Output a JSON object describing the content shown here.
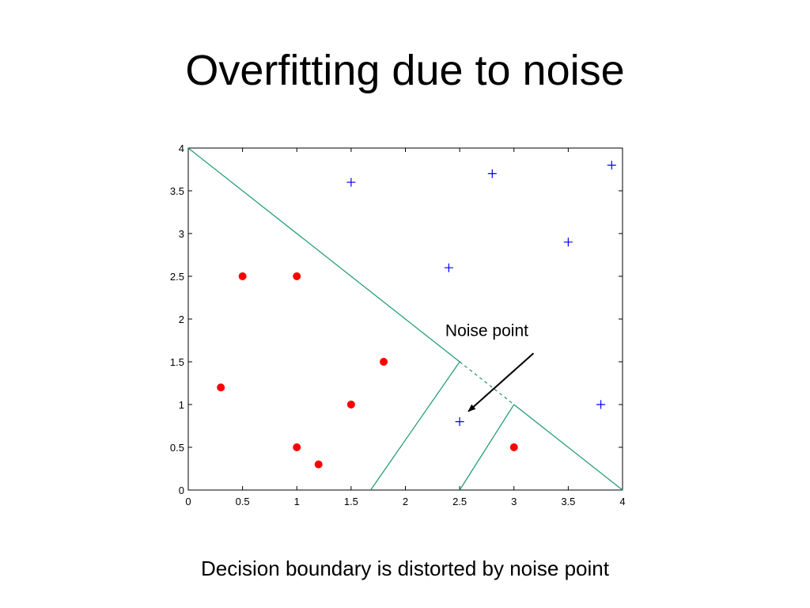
{
  "slide": {
    "title": "Overfitting due to noise",
    "caption": "Decision boundary is distorted by noise point"
  },
  "chart_data": {
    "type": "scatter",
    "xlim": [
      0,
      4
    ],
    "ylim": [
      0,
      4
    ],
    "x_ticks": [
      "0",
      "0.5",
      "1",
      "1.5",
      "2",
      "2.5",
      "3",
      "3.5",
      "4"
    ],
    "y_ticks": [
      "0",
      "0.5",
      "1",
      "1.5",
      "2",
      "2.5",
      "3",
      "3.5",
      "4"
    ],
    "grid": false,
    "series": [
      {
        "marker": "circle",
        "color": "#ff0000",
        "points": [
          [
            0.5,
            2.5
          ],
          [
            1,
            2.5
          ],
          [
            0.3,
            1.2
          ],
          [
            1.8,
            1.5
          ],
          [
            1.5,
            1.0
          ],
          [
            1,
            0.5
          ],
          [
            1.2,
            0.3
          ],
          [
            3,
            0.5
          ]
        ]
      },
      {
        "marker": "plus",
        "color": "#0000ff",
        "points": [
          [
            1.5,
            3.6
          ],
          [
            2.8,
            3.7
          ],
          [
            3.9,
            3.8
          ],
          [
            3.5,
            2.9
          ],
          [
            2.4,
            2.6
          ],
          [
            2.5,
            0.8
          ],
          [
            3.8,
            1.0
          ]
        ]
      }
    ],
    "boundary_lines": [
      {
        "style": "solid",
        "color": "#1a9a6a",
        "points": [
          [
            0,
            4
          ],
          [
            2.5,
            1.5
          ]
        ]
      },
      {
        "style": "dashed",
        "color": "#1a9a6a",
        "points": [
          [
            2.5,
            1.5
          ],
          [
            3,
            1
          ]
        ]
      },
      {
        "style": "solid",
        "color": "#1a9a6a",
        "points": [
          [
            3,
            1
          ],
          [
            4,
            0
          ]
        ]
      },
      {
        "style": "solid",
        "color": "#1a9a6a",
        "points": [
          [
            2.5,
            1.5
          ],
          [
            1.68,
            0
          ]
        ]
      },
      {
        "style": "solid",
        "color": "#1a9a6a",
        "points": [
          [
            3,
            1
          ],
          [
            2.5,
            0
          ]
        ]
      }
    ],
    "annotation": {
      "text": "Noise point",
      "text_at": [
        2.75,
        1.8
      ],
      "arrow_from": [
        3.18,
        1.6
      ],
      "arrow_to": [
        2.58,
        0.92
      ]
    }
  }
}
